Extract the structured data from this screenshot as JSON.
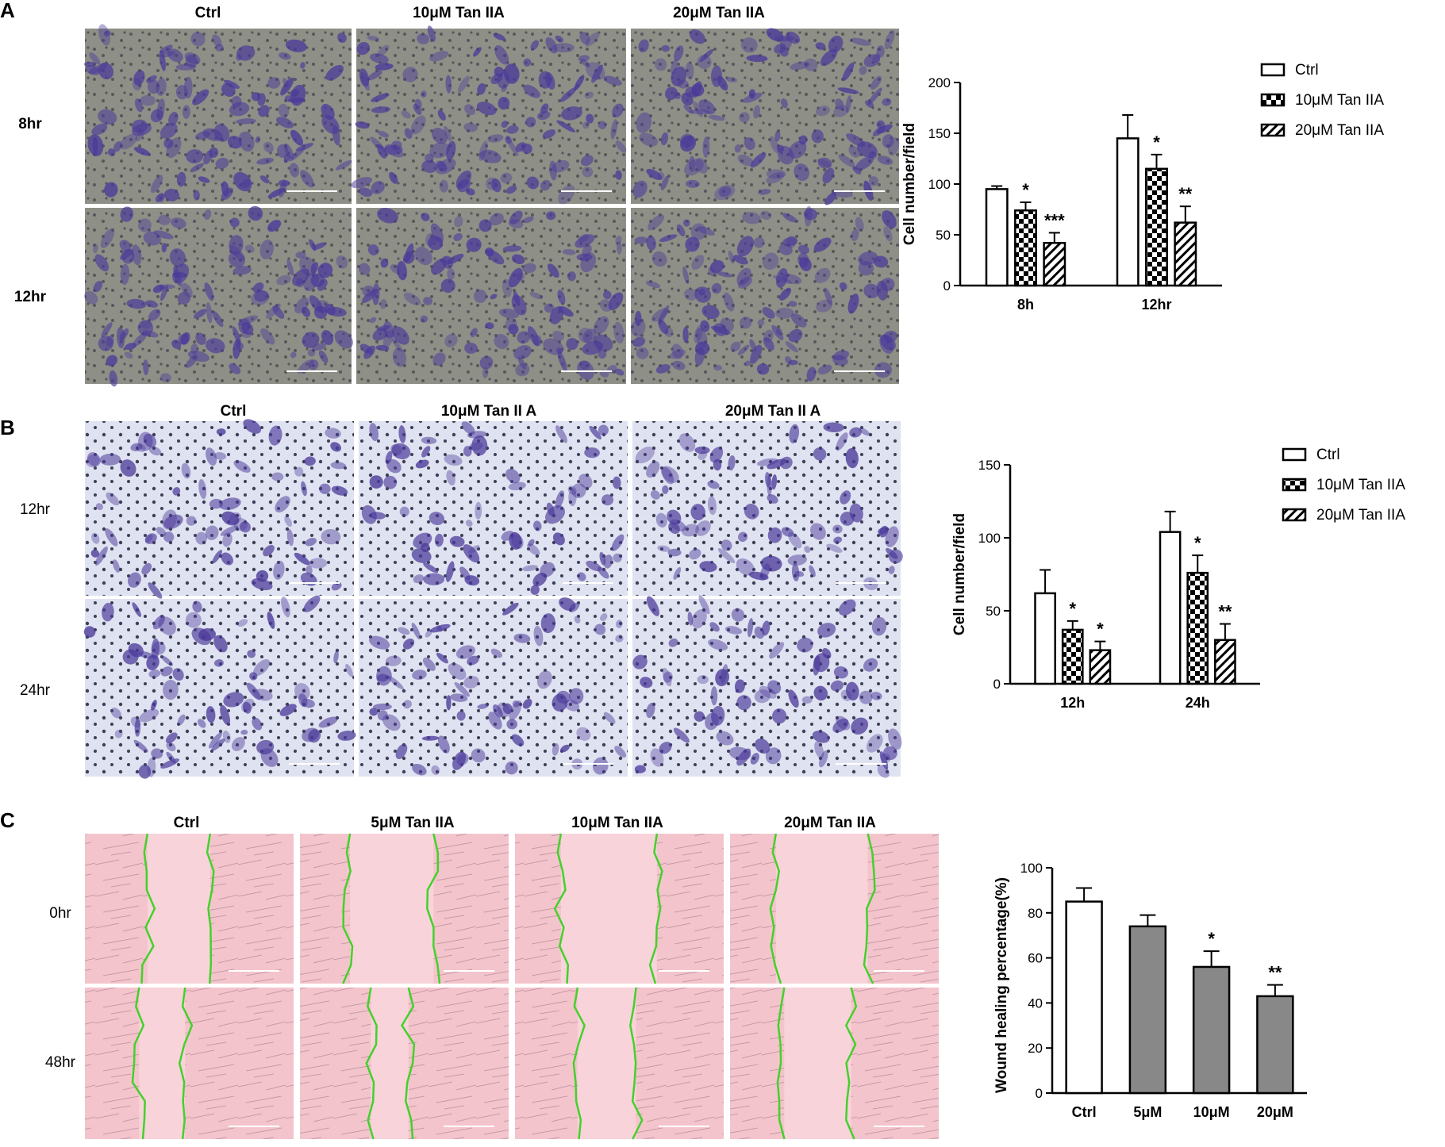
{
  "colors": {
    "panel_a_bg": "#8e8f86",
    "panel_b_bg": "#dfe2f0",
    "panel_c_bg": "#f4c4cc",
    "crystal_violet": "#4b3a9a",
    "wound_edge": "#43d12b",
    "bar_gray": "#888888"
  },
  "panels": [
    {
      "letter": "A",
      "column_labels": [
        "Ctrl",
        "10μM Tan IIA",
        "20μM Tan IIA"
      ],
      "row_labels": [
        "8hr",
        "12hr"
      ]
    },
    {
      "letter": "B",
      "column_labels": [
        "Ctrl",
        "10μM Tan II A",
        "20μM Tan II A"
      ],
      "row_labels": [
        "12hr",
        "24hr"
      ]
    },
    {
      "letter": "C",
      "column_labels": [
        "Ctrl",
        "5μM Tan IIA",
        "10μM Tan IIA",
        "20μM Tan IIA"
      ],
      "row_labels": [
        "0hr",
        "48hr"
      ]
    }
  ],
  "chart_data": [
    {
      "type": "bar",
      "categories": [
        "8h",
        "12hr"
      ],
      "ylabel": "Cell number/field",
      "ylim": [
        0,
        200
      ],
      "yticks": [
        0,
        50,
        100,
        150,
        200
      ],
      "legend_position": "top-right",
      "series": [
        {
          "name": "Ctrl",
          "pattern": "white",
          "values": [
            95,
            145
          ],
          "errors": [
            3,
            23
          ],
          "sig": [
            "",
            ""
          ]
        },
        {
          "name": "10μM Tan IIA",
          "pattern": "checker",
          "values": [
            74,
            115
          ],
          "errors": [
            8,
            14
          ],
          "sig": [
            "*",
            "*"
          ]
        },
        {
          "name": "20μM Tan IIA",
          "pattern": "hatch",
          "values": [
            42,
            62
          ],
          "errors": [
            10,
            16
          ],
          "sig": [
            "***",
            "**"
          ]
        }
      ]
    },
    {
      "type": "bar",
      "categories": [
        "12h",
        "24h"
      ],
      "ylabel": "Cell number/field",
      "ylim": [
        0,
        150
      ],
      "yticks": [
        0,
        50,
        100,
        150
      ],
      "legend_position": "top-right",
      "series": [
        {
          "name": "Ctrl",
          "pattern": "white",
          "values": [
            62,
            104
          ],
          "errors": [
            16,
            14
          ],
          "sig": [
            "",
            ""
          ]
        },
        {
          "name": "10μM Tan IIA",
          "pattern": "checker",
          "values": [
            37,
            76
          ],
          "errors": [
            6,
            12
          ],
          "sig": [
            "*",
            "*"
          ]
        },
        {
          "name": "20μM Tan IIA",
          "pattern": "hatch",
          "values": [
            23,
            30
          ],
          "errors": [
            6,
            11
          ],
          "sig": [
            "*",
            "**"
          ]
        }
      ]
    },
    {
      "type": "bar",
      "categories": [
        "Ctrl",
        "5μM",
        "10μM",
        "20μM"
      ],
      "ylabel": "Wound healing percentage(%)",
      "ylim": [
        0,
        100
      ],
      "yticks": [
        0,
        20,
        40,
        60,
        80,
        100
      ],
      "values": [
        85,
        74,
        56,
        43
      ],
      "errors": [
        6,
        5,
        7,
        5
      ],
      "sig": [
        "",
        "",
        "*",
        "**"
      ],
      "fills": [
        "white",
        "gray",
        "gray",
        "gray"
      ]
    }
  ]
}
